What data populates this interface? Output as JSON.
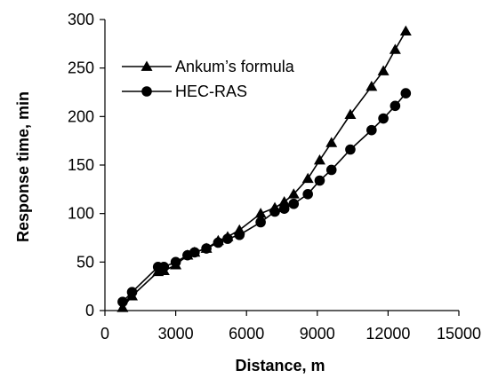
{
  "chart_data": {
    "type": "line",
    "title": "",
    "xlabel": "Distance, m",
    "ylabel": "Response time, min",
    "xlim": [
      0,
      15000
    ],
    "ylim": [
      0,
      300
    ],
    "xticks": [
      0,
      3000,
      6000,
      9000,
      12000,
      15000
    ],
    "yticks": [
      0,
      50,
      100,
      150,
      200,
      250,
      300
    ],
    "grid": false,
    "legend_position": "top-left",
    "series": [
      {
        "name": "Ankum’s formula",
        "marker": "triangle",
        "color": "#000000",
        "x": [
          750,
          1150,
          2250,
          2500,
          3000,
          3500,
          3800,
          4300,
          4800,
          5200,
          5700,
          6600,
          7200,
          7600,
          8000,
          8600,
          9100,
          9600,
          10400,
          11300,
          11800,
          12300,
          12750
        ],
        "y": [
          3,
          15,
          40,
          41,
          47,
          57,
          60,
          64,
          72,
          76,
          83,
          100,
          106,
          112,
          120,
          136,
          155,
          173,
          202,
          231,
          247,
          269,
          288
        ]
      },
      {
        "name": "HEC-RAS",
        "marker": "circle",
        "color": "#000000",
        "x": [
          750,
          1150,
          2250,
          2500,
          3000,
          3500,
          3800,
          4300,
          4800,
          5200,
          5700,
          6600,
          7200,
          7600,
          8000,
          8600,
          9100,
          9600,
          10400,
          11300,
          11800,
          12300,
          12750
        ],
        "y": [
          9,
          19,
          45,
          45,
          50,
          57,
          60,
          64,
          70,
          74,
          78,
          91,
          102,
          105,
          110,
          120,
          134,
          145,
          166,
          186,
          198,
          211,
          224
        ]
      }
    ]
  }
}
